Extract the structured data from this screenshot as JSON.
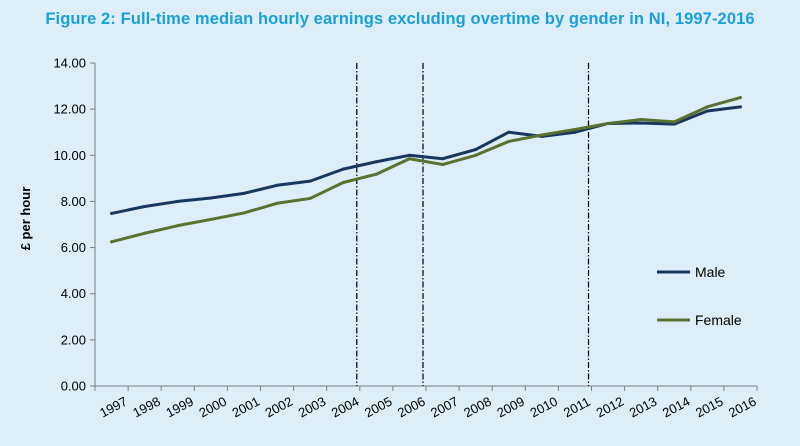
{
  "colors": {
    "background": "#ddeef8",
    "title": "#1aa0d8",
    "male": "#17375e",
    "female": "#5a7131"
  },
  "chart_data": {
    "type": "line",
    "title": "Figure 2: Full-time median hourly earnings excluding overtime by gender in NI, 1997-2016",
    "xlabel": "",
    "ylabel": "£ per hour",
    "ylim": [
      0,
      14
    ],
    "yticks": [
      "0.00",
      "2.00",
      "4.00",
      "6.00",
      "8.00",
      "10.00",
      "12.00",
      "14.00"
    ],
    "categories": [
      "1997",
      "1998",
      "1999",
      "2000",
      "2001",
      "2002",
      "2003",
      "2004",
      "2005",
      "2006",
      "2007",
      "2008",
      "2009",
      "2010",
      "2011",
      "2012",
      "2013",
      "2014",
      "2015",
      "2016"
    ],
    "series": [
      {
        "name": "Male",
        "color": "#17375e",
        "values": [
          7.48,
          7.78,
          8.0,
          8.15,
          8.35,
          8.7,
          8.88,
          9.4,
          9.72,
          10.0,
          9.85,
          10.25,
          11.0,
          10.82,
          11.0,
          11.38,
          11.4,
          11.35,
          11.92,
          12.1
        ]
      },
      {
        "name": "Female",
        "color": "#5a7131",
        "values": [
          6.25,
          6.62,
          6.95,
          7.22,
          7.5,
          7.92,
          8.13,
          8.82,
          9.18,
          9.85,
          9.6,
          10.0,
          10.6,
          10.88,
          11.12,
          11.38,
          11.55,
          11.45,
          12.1,
          12.5
        ]
      }
    ],
    "vlines_after": [
      "2004",
      "2006",
      "2011"
    ],
    "legend": "right-middle",
    "grid": false
  }
}
